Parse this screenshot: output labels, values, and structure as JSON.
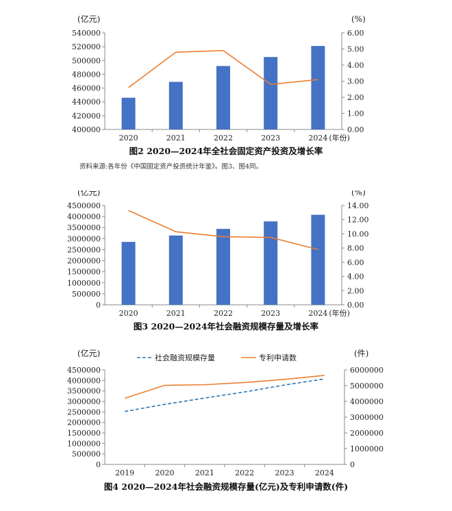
{
  "chart_data": [
    {
      "type": "bar",
      "title": "图2  2020—2024年全社会固定资产投资及增长率",
      "source": "资料来源:各年份《中国固定资产投资统计年鉴》。图3、图4同。",
      "y_unit_left": "(亿元)",
      "y_unit_right": "(%)",
      "x_unit": "(年份)",
      "categories": [
        "2020",
        "2021",
        "2022",
        "2023",
        "2024"
      ],
      "ylim_left": [
        400000,
        540000
      ],
      "yticks_left": [
        "400000",
        "420000",
        "440000",
        "460000",
        "480000",
        "500000",
        "520000",
        "540000"
      ],
      "ylim_right": [
        0,
        6
      ],
      "yticks_right": [
        "0.00",
        "1.00",
        "2.00",
        "3.00",
        "4.00",
        "5.00",
        "6.00"
      ],
      "series": [
        {
          "kind": "bar",
          "axis": "left",
          "values": [
            446000,
            469000,
            492000,
            505000,
            521000
          ],
          "color": "#4472c4"
        },
        {
          "kind": "line",
          "axis": "right",
          "values": [
            2.6,
            4.8,
            4.9,
            2.8,
            3.1
          ],
          "color": "#ed7d31"
        }
      ]
    },
    {
      "type": "bar",
      "title": "图3  2020—2024年社会融资规模存量及增长率",
      "y_unit_left": "(亿元)",
      "y_unit_right": "(%)",
      "x_unit": "(年份)",
      "categories": [
        "2020",
        "2021",
        "2022",
        "2023",
        "2024"
      ],
      "ylim_left": [
        0,
        4500000
      ],
      "yticks_left": [
        "0",
        "500000",
        "1000000",
        "1500000",
        "2000000",
        "2500000",
        "3000000",
        "3500000",
        "4000000",
        "4500000"
      ],
      "ylim_right": [
        0,
        14
      ],
      "yticks_right": [
        "0.00",
        "2.00",
        "4.00",
        "6.00",
        "8.00",
        "10.00",
        "12.00",
        "14.00"
      ],
      "series": [
        {
          "kind": "bar",
          "axis": "left",
          "values": [
            2850000,
            3140000,
            3440000,
            3780000,
            4080000
          ],
          "color": "#4472c4"
        },
        {
          "kind": "line",
          "axis": "right",
          "values": [
            13.3,
            10.3,
            9.6,
            9.5,
            7.8
          ],
          "color": "#ed7d31"
        }
      ]
    },
    {
      "type": "line",
      "title": "图4  2020—2024年社会融资规模存量(亿元)及专利申请数(件)",
      "y_unit_left": "(亿元)",
      "y_unit_right": "(件)",
      "categories": [
        "2019",
        "2020",
        "2021",
        "2022",
        "2023",
        "2024"
      ],
      "ylim_left": [
        0,
        4500000
      ],
      "yticks_left": [
        "0",
        "500000",
        "1000000",
        "1500000",
        "2000000",
        "2500000",
        "3000000",
        "3500000",
        "4000000",
        "4500000"
      ],
      "ylim_right": [
        0,
        6000000
      ],
      "yticks_right": [
        "0",
        "1000000",
        "2000000",
        "3000000",
        "4000000",
        "5000000",
        "6000000"
      ],
      "series": [
        {
          "name": "社会融资规模存量",
          "kind": "line",
          "axis": "left",
          "dashed": true,
          "values": [
            2520000,
            2860000,
            3160000,
            3450000,
            3780000,
            4070000
          ],
          "color": "#2e75b6"
        },
        {
          "name": "专利申请数",
          "kind": "line",
          "axis": "right",
          "values": [
            4200000,
            5020000,
            5060000,
            5200000,
            5400000,
            5650000
          ],
          "color": "#ed7d31"
        }
      ]
    }
  ]
}
